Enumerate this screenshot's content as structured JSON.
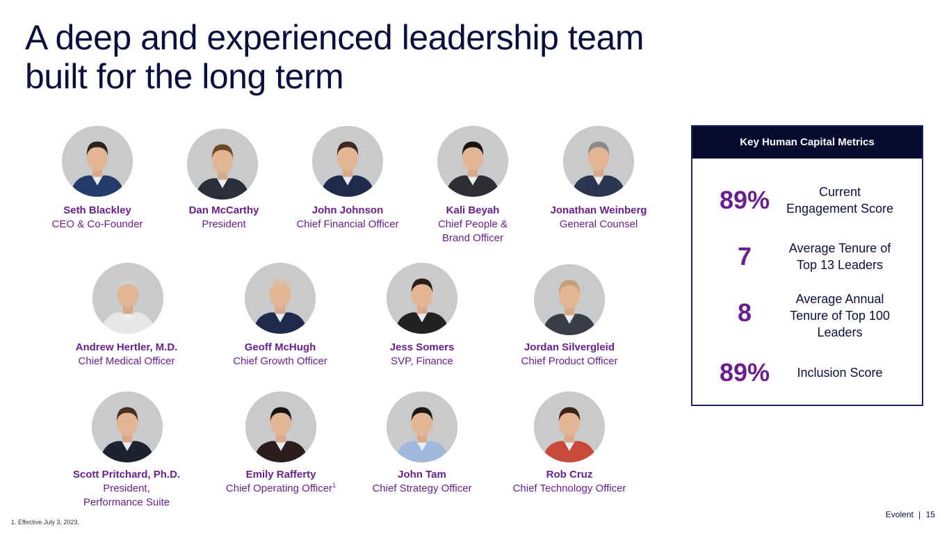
{
  "title_line1": "A deep and experienced leadership team",
  "title_line2": "built for the long term",
  "people": [
    {
      "name": "Seth Blackley",
      "role1": "CEO & Co-Founder",
      "role2": ""
    },
    {
      "name": "Dan McCarthy",
      "role1": "President",
      "role2": ""
    },
    {
      "name": "John Johnson",
      "role1": "Chief Financial Officer",
      "role2": ""
    },
    {
      "name": "Kali Beyah",
      "role1": "Chief People &",
      "role2": "Brand Officer"
    },
    {
      "name": "Jonathan Weinberg",
      "role1": "General Counsel",
      "role2": ""
    },
    {
      "name": "Andrew Hertler, M.D.",
      "role1": "Chief Medical Officer",
      "role2": ""
    },
    {
      "name": "Geoff McHugh",
      "role1": "Chief Growth Officer",
      "role2": ""
    },
    {
      "name": "Jess Somers",
      "role1": "SVP, Finance",
      "role2": ""
    },
    {
      "name": "Jordan Silvergleid",
      "role1": "Chief Product Officer",
      "role2": ""
    },
    {
      "name": "Scott Pritchard, Ph.D.",
      "role1": "President,",
      "role2": "Performance Suite"
    },
    {
      "name": "Emily Rafferty",
      "role1": "Chief Operating Officer",
      "role2": "",
      "sup": "1"
    },
    {
      "name": "John Tam",
      "role1": "Chief Strategy Officer",
      "role2": ""
    },
    {
      "name": "Rob Cruz",
      "role1": "Chief Technology Officer",
      "role2": ""
    }
  ],
  "metrics": {
    "header": "Key Human Capital Metrics",
    "items": [
      {
        "value": "89%",
        "label1": "Current",
        "label2": "Engagement Score",
        "label3": ""
      },
      {
        "value": "7",
        "label1": "Average Tenure of",
        "label2": "Top 13 Leaders",
        "label3": ""
      },
      {
        "value": "8",
        "label1": "Average Annual",
        "label2": "Tenure of Top 100",
        "label3": "Leaders"
      },
      {
        "value": "89%",
        "label1": "Inclusion Score",
        "label2": "",
        "label3": ""
      }
    ]
  },
  "footnote": "1.  Effective July 3, 2023.",
  "footer": {
    "brand": "Evolent",
    "separator": "|",
    "page": "15"
  },
  "colors": {
    "accent": "#6b1f8f",
    "navy": "#0a0f3d",
    "header_bg": "#070b2e",
    "photo_bg": "#c9cacc"
  }
}
